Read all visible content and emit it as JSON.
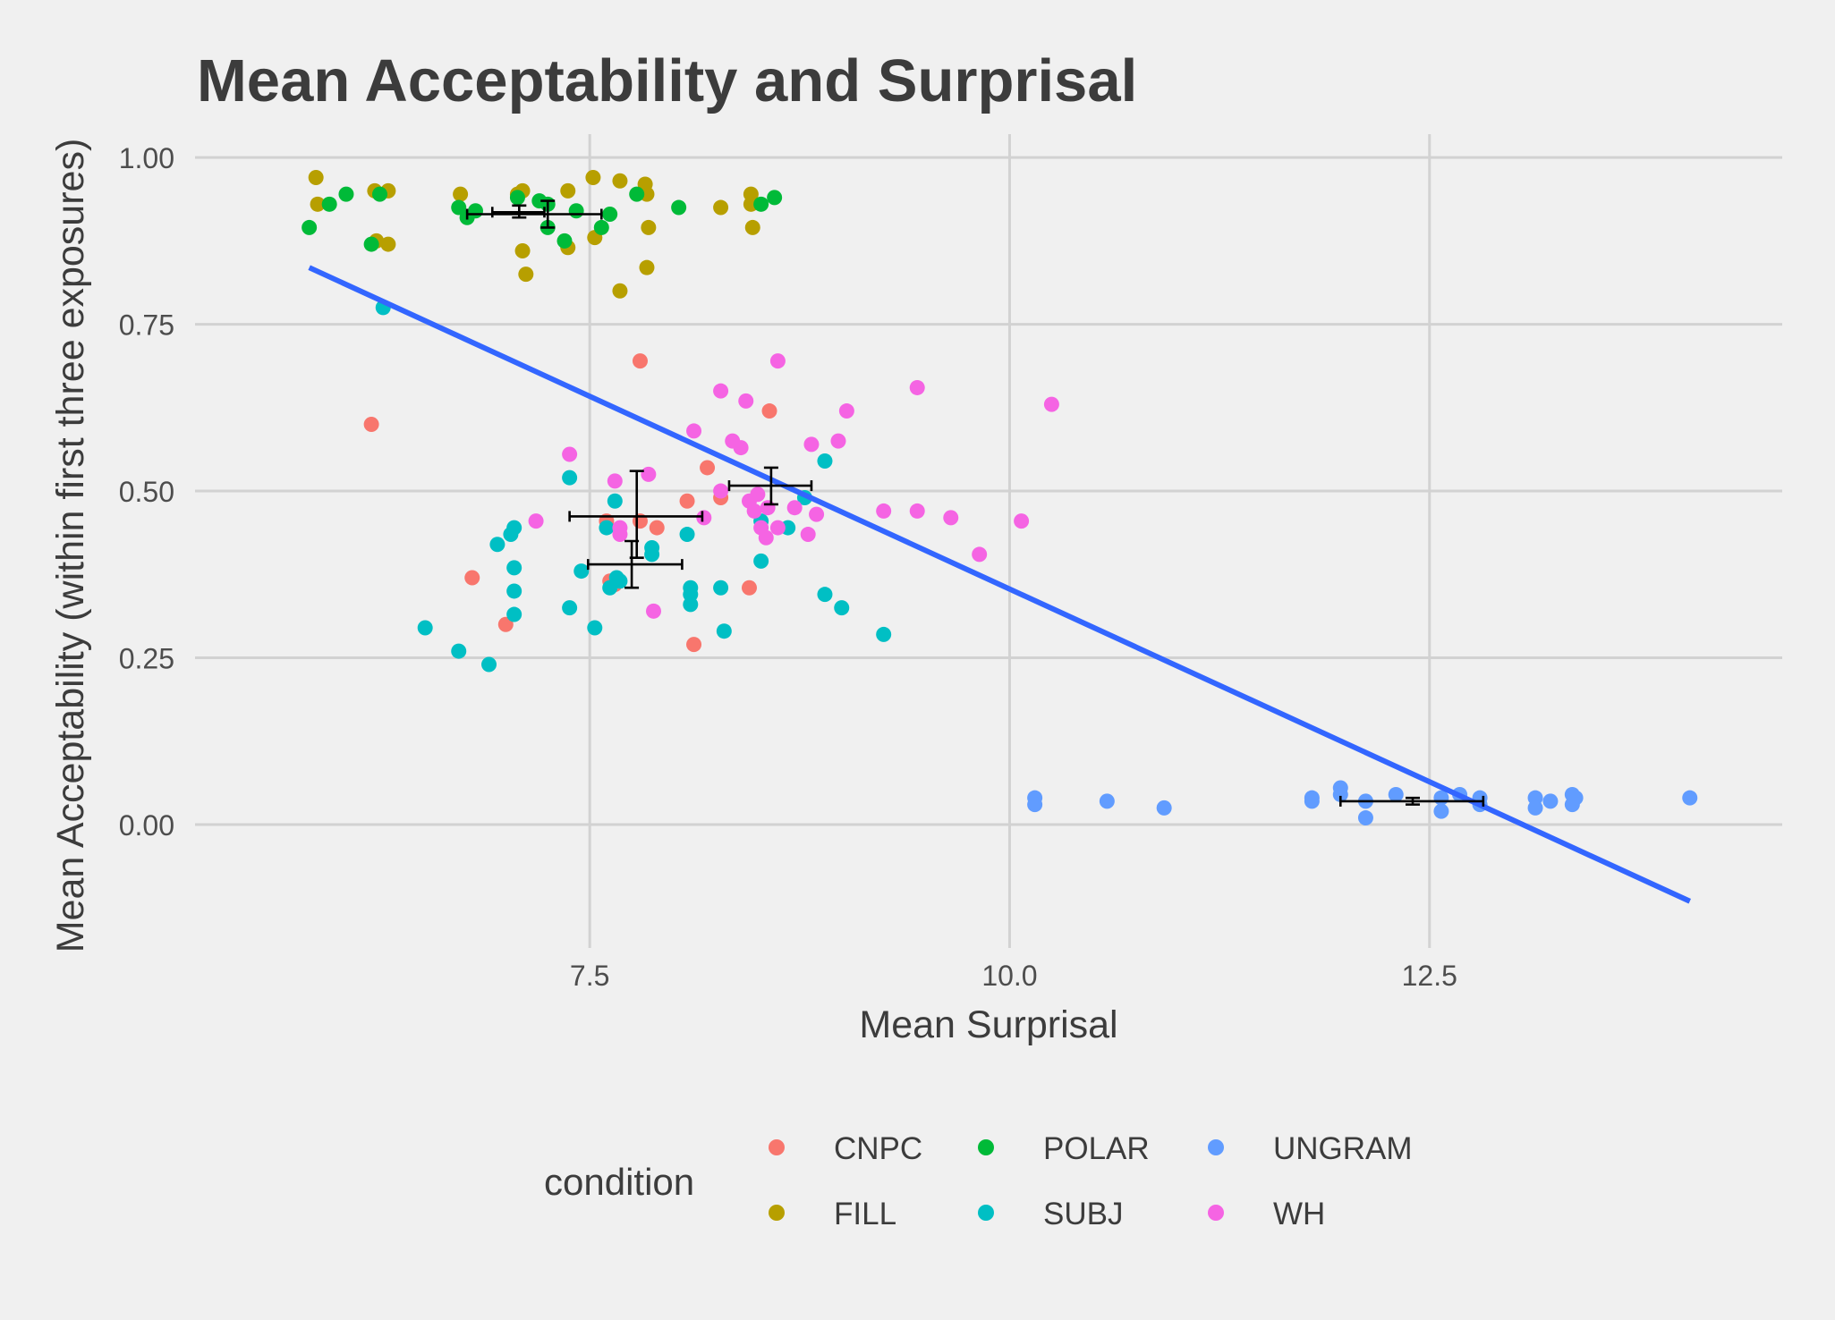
{
  "chart_data": {
    "type": "scatter",
    "title": "Mean Acceptability and Surprisal",
    "xlabel": "Mean Surprisal",
    "ylabel": "Mean Acceptability (within first three exposures)",
    "xlim": [
      5.15,
      14.6
    ],
    "ylim": [
      -0.185,
      1.035
    ],
    "x_ticks": [
      7.5,
      10.0,
      12.5
    ],
    "x_tick_labels": [
      "7.5",
      "10.0",
      "12.5"
    ],
    "y_ticks": [
      0.0,
      0.25,
      0.5,
      0.75,
      1.0
    ],
    "y_tick_labels": [
      "0.00",
      "0.25",
      "0.50",
      "0.75",
      "1.00"
    ],
    "grid": true,
    "legend": {
      "title": "condition",
      "placement": "bottom",
      "entries": [
        {
          "label": "CNPC",
          "color": "#F8766D"
        },
        {
          "label": "POLAR",
          "color": "#00BA38"
        },
        {
          "label": "UNGRAM",
          "color": "#619CFF"
        },
        {
          "label": "FILL",
          "color": "#B79F00"
        },
        {
          "label": "SUBJ",
          "color": "#00BFC4"
        },
        {
          "label": "WH",
          "color": "#F564E3"
        }
      ]
    },
    "series": [
      {
        "name": "CNPC",
        "color": "#F8766D",
        "points": [
          [
            6.2,
            0.6
          ],
          [
            6.8,
            0.37
          ],
          [
            7.0,
            0.3
          ],
          [
            7.6,
            0.455
          ],
          [
            7.65,
            0.36
          ],
          [
            7.8,
            0.695
          ],
          [
            7.8,
            0.455
          ],
          [
            7.9,
            0.445
          ],
          [
            8.08,
            0.485
          ],
          [
            8.12,
            0.27
          ],
          [
            8.2,
            0.535
          ],
          [
            8.28,
            0.49
          ],
          [
            8.45,
            0.355
          ],
          [
            8.57,
            0.62
          ],
          [
            7.62,
            0.365
          ]
        ]
      },
      {
        "name": "FILL",
        "color": "#B79F00",
        "points": [
          [
            5.87,
            0.97
          ],
          [
            5.88,
            0.93
          ],
          [
            6.22,
            0.95
          ],
          [
            6.23,
            0.875
          ],
          [
            6.3,
            0.95
          ],
          [
            6.3,
            0.87
          ],
          [
            6.73,
            0.945
          ],
          [
            7.07,
            0.945
          ],
          [
            7.1,
            0.95
          ],
          [
            7.1,
            0.86
          ],
          [
            7.12,
            0.825
          ],
          [
            7.37,
            0.95
          ],
          [
            7.37,
            0.865
          ],
          [
            7.52,
            0.97
          ],
          [
            7.53,
            0.88
          ],
          [
            7.68,
            0.965
          ],
          [
            7.68,
            0.8
          ],
          [
            7.83,
            0.96
          ],
          [
            7.84,
            0.945
          ],
          [
            7.85,
            0.895
          ],
          [
            7.84,
            0.835
          ],
          [
            8.28,
            0.925
          ],
          [
            8.46,
            0.945
          ],
          [
            8.46,
            0.93
          ],
          [
            8.47,
            0.895
          ]
        ]
      },
      {
        "name": "POLAR",
        "color": "#00BA38",
        "points": [
          [
            5.83,
            0.895
          ],
          [
            5.95,
            0.93
          ],
          [
            6.05,
            0.945
          ],
          [
            6.2,
            0.87
          ],
          [
            6.25,
            0.945
          ],
          [
            6.72,
            0.925
          ],
          [
            6.77,
            0.91
          ],
          [
            6.82,
            0.92
          ],
          [
            7.07,
            0.94
          ],
          [
            7.2,
            0.935
          ],
          [
            7.25,
            0.93
          ],
          [
            7.25,
            0.895
          ],
          [
            7.35,
            0.875
          ],
          [
            7.42,
            0.92
          ],
          [
            7.57,
            0.895
          ],
          [
            7.62,
            0.915
          ],
          [
            7.78,
            0.945
          ],
          [
            8.03,
            0.925
          ],
          [
            8.52,
            0.93
          ],
          [
            8.6,
            0.94
          ]
        ]
      },
      {
        "name": "SUBJ",
        "color": "#00BFC4",
        "points": [
          [
            6.27,
            0.775
          ],
          [
            6.52,
            0.295
          ],
          [
            6.72,
            0.26
          ],
          [
            6.9,
            0.24
          ],
          [
            6.95,
            0.42
          ],
          [
            7.03,
            0.435
          ],
          [
            7.05,
            0.445
          ],
          [
            7.05,
            0.385
          ],
          [
            7.05,
            0.35
          ],
          [
            7.05,
            0.315
          ],
          [
            7.38,
            0.52
          ],
          [
            7.38,
            0.325
          ],
          [
            7.45,
            0.38
          ],
          [
            7.53,
            0.295
          ],
          [
            7.6,
            0.445
          ],
          [
            7.65,
            0.485
          ],
          [
            7.62,
            0.355
          ],
          [
            7.66,
            0.37
          ],
          [
            7.68,
            0.365
          ],
          [
            7.87,
            0.415
          ],
          [
            7.87,
            0.405
          ],
          [
            8.08,
            0.435
          ],
          [
            8.1,
            0.355
          ],
          [
            8.1,
            0.345
          ],
          [
            8.1,
            0.33
          ],
          [
            8.28,
            0.355
          ],
          [
            8.3,
            0.29
          ],
          [
            8.52,
            0.455
          ],
          [
            8.52,
            0.395
          ],
          [
            8.68,
            0.445
          ],
          [
            8.78,
            0.49
          ],
          [
            8.9,
            0.545
          ],
          [
            8.9,
            0.345
          ],
          [
            9.0,
            0.325
          ],
          [
            9.25,
            0.285
          ]
        ]
      },
      {
        "name": "UNGRAM",
        "color": "#619CFF",
        "points": [
          [
            10.15,
            0.04
          ],
          [
            10.15,
            0.03
          ],
          [
            10.58,
            0.035
          ],
          [
            10.92,
            0.025
          ],
          [
            11.8,
            0.04
          ],
          [
            11.8,
            0.035
          ],
          [
            11.97,
            0.055
          ],
          [
            11.97,
            0.045
          ],
          [
            12.12,
            0.035
          ],
          [
            12.12,
            0.01
          ],
          [
            12.3,
            0.045
          ],
          [
            12.57,
            0.04
          ],
          [
            12.57,
            0.02
          ],
          [
            12.68,
            0.045
          ],
          [
            12.8,
            0.03
          ],
          [
            12.8,
            0.04
          ],
          [
            13.13,
            0.04
          ],
          [
            13.13,
            0.025
          ],
          [
            13.22,
            0.035
          ],
          [
            13.35,
            0.045
          ],
          [
            13.35,
            0.03
          ],
          [
            13.37,
            0.04
          ],
          [
            14.05,
            0.04
          ]
        ]
      },
      {
        "name": "WH",
        "color": "#F564E3",
        "points": [
          [
            7.18,
            0.455
          ],
          [
            7.38,
            0.555
          ],
          [
            7.65,
            0.515
          ],
          [
            7.68,
            0.445
          ],
          [
            7.68,
            0.435
          ],
          [
            7.85,
            0.525
          ],
          [
            7.88,
            0.32
          ],
          [
            8.12,
            0.59
          ],
          [
            8.18,
            0.46
          ],
          [
            8.28,
            0.65
          ],
          [
            8.28,
            0.5
          ],
          [
            8.35,
            0.575
          ],
          [
            8.4,
            0.565
          ],
          [
            8.43,
            0.635
          ],
          [
            8.45,
            0.485
          ],
          [
            8.48,
            0.47
          ],
          [
            8.5,
            0.495
          ],
          [
            8.52,
            0.445
          ],
          [
            8.55,
            0.43
          ],
          [
            8.56,
            0.475
          ],
          [
            8.62,
            0.695
          ],
          [
            8.62,
            0.445
          ],
          [
            8.72,
            0.475
          ],
          [
            8.8,
            0.435
          ],
          [
            8.82,
            0.57
          ],
          [
            8.85,
            0.465
          ],
          [
            8.98,
            0.575
          ],
          [
            9.03,
            0.62
          ],
          [
            9.25,
            0.47
          ],
          [
            9.45,
            0.655
          ],
          [
            9.45,
            0.47
          ],
          [
            9.65,
            0.46
          ],
          [
            9.82,
            0.405
          ],
          [
            10.07,
            0.455
          ],
          [
            10.25,
            0.63
          ]
        ]
      }
    ],
    "error_bars": [
      {
        "condition": "FILL",
        "x": 7.25,
        "y": 0.915,
        "x_low": 6.77,
        "x_high": 7.57,
        "y_low": 0.895,
        "y_high": 0.935
      },
      {
        "condition": "POLAR",
        "x": 7.08,
        "y": 0.918,
        "x_low": 6.92,
        "x_high": 7.23,
        "y_low": 0.91,
        "y_high": 0.928
      },
      {
        "condition": "CNPC",
        "x": 7.78,
        "y": 0.462,
        "x_low": 7.38,
        "x_high": 8.17,
        "y_low": 0.4,
        "y_high": 0.53
      },
      {
        "condition": "SUBJ",
        "x": 7.75,
        "y": 0.39,
        "x_low": 7.49,
        "x_high": 8.05,
        "y_low": 0.355,
        "y_high": 0.425
      },
      {
        "condition": "WH",
        "x": 8.58,
        "y": 0.508,
        "x_low": 8.33,
        "x_high": 8.82,
        "y_low": 0.48,
        "y_high": 0.535
      },
      {
        "condition": "UNGRAM",
        "x": 12.4,
        "y": 0.035,
        "x_low": 11.97,
        "x_high": 12.82,
        "y_low": 0.03,
        "y_high": 0.04
      }
    ],
    "trend_line": {
      "color": "#3366FF",
      "x": [
        5.83,
        14.05
      ],
      "y": [
        0.835,
        -0.115
      ]
    }
  }
}
